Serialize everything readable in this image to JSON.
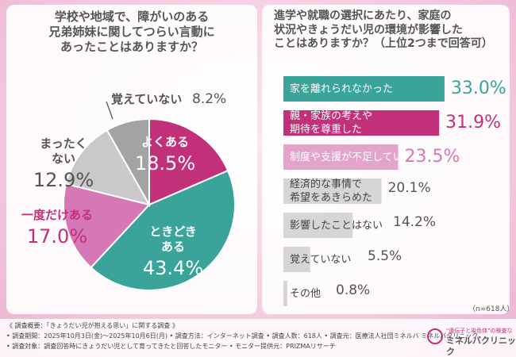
{
  "chart_data": [
    {
      "type": "pie",
      "title": "学校や地域で、障がいのある\n兄弟姉妹に関してつらい言動に\nあったことはありますか？",
      "categories": [
        "よくある",
        "ときどき\nある",
        "一度だけある",
        "まったく\nない",
        "覚えていない"
      ],
      "values": [
        18.5,
        43.4,
        17.0,
        12.9,
        8.2
      ],
      "value_labels": [
        "18.5%",
        "43.4%",
        "17.0%",
        "12.9%",
        "8.2%"
      ],
      "colors": [
        "#c2307a",
        "#3aa49a",
        "#d778b6",
        "#c9c9c9",
        "#a3a3a3"
      ]
    },
    {
      "type": "barh",
      "title": "進学や就職の選択にあたり、家庭の\n状況やきょうだい児の環境が影響した\nことはありますか？（上位2つまで回答可）",
      "categories": [
        "家を離れられなかった",
        "親・家族の考えや\n期待を尊重した",
        "制度や支援が不足していた",
        "経済的な事情で\n希望をあきらめた",
        "影響したことはない",
        "覚えていない",
        "その他"
      ],
      "values": [
        33.0,
        31.9,
        23.5,
        20.1,
        14.2,
        5.5,
        0.8
      ],
      "value_labels": [
        "33.0%",
        "31.9%",
        "23.5%",
        "20.1%",
        "14.2%",
        "5.5%",
        "0.8%"
      ],
      "colors": [
        "#3aa49a",
        "#c2307a",
        "#e3a4cc",
        "#d6d6d6",
        "#d6d6d6",
        "#d6d6d6",
        "#d6d6d6"
      ],
      "label_colors": [
        "#3aa49a",
        "#c2307a",
        "#d778b6",
        "#555555",
        "#555555",
        "#555555",
        "#555555"
      ],
      "xlim": [
        0,
        40
      ],
      "note": "（n=618人）"
    }
  ],
  "footer": [
    "《 調査概要：「きょうだい児が抱える思い」に関する調査 》",
    "• 調査期間：2025年10月3日(金)～2025年10月6日(月) • 調査方法：インターネット調査 • 調査人数：618人 • 調査元：医療法人社団ミネルバ ミネルバクリニック",
    "• 調査対象：調査回答時にきょうだい児として育ってきたと回答したモニター • モニター提供元：PRIZMAリサーチ"
  ],
  "logo": {
    "tagline": "\"遺伝子と染色体\"の検査なら",
    "name": "ミネルバクリニック"
  }
}
